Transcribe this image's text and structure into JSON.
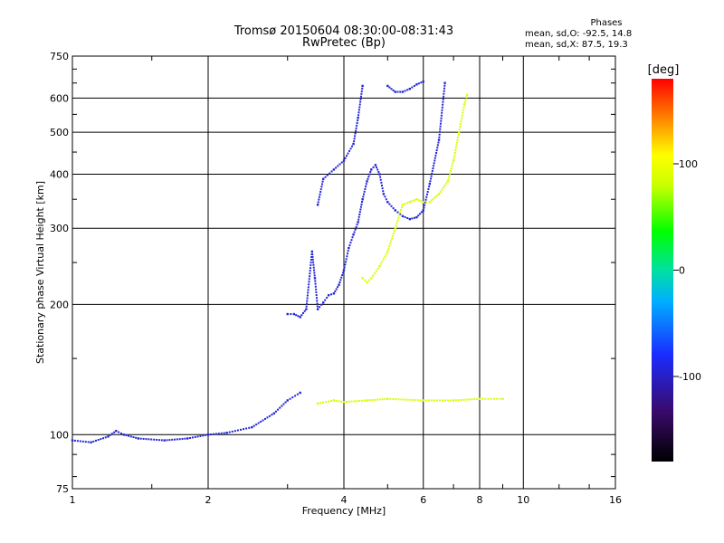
{
  "chart_data": {
    "type": "scatter",
    "title": "Tromsø 20150604 08:30:00-08:31:43",
    "subtitle": "RwPretec (Bp)",
    "xlabel": "Frequency [MHz]",
    "ylabel": "Stationary phase Virtual Height [km]",
    "x_scale": "log",
    "y_scale": "log",
    "xlim": [
      1,
      16
    ],
    "ylim": [
      75,
      750
    ],
    "x_ticks": [
      1,
      2,
      4,
      6,
      8,
      10,
      16
    ],
    "y_ticks": [
      75,
      100,
      200,
      300,
      400,
      500,
      600,
      750
    ],
    "grid": true,
    "phases": {
      "title": "Phases",
      "o_mode": "mean, sd,O: -92.5, 14.8",
      "x_mode": "mean, sd,X:  87.5, 19.3"
    },
    "colorbar": {
      "label": "[deg]",
      "ticks": [
        100,
        0,
        -100
      ],
      "range": [
        -180,
        180
      ]
    },
    "series": [
      {
        "mode": "O",
        "color_value": -92.5,
        "segments": [
          [
            [
              1.0,
              97
            ],
            [
              1.1,
              96
            ],
            [
              1.2,
              99
            ],
            [
              1.25,
              102
            ],
            [
              1.3,
              100
            ],
            [
              1.4,
              98
            ],
            [
              1.6,
              97
            ],
            [
              1.8,
              98
            ],
            [
              2.0,
              100
            ],
            [
              2.2,
              101
            ],
            [
              2.5,
              104
            ],
            [
              2.8,
              112
            ],
            [
              3.0,
              120
            ],
            [
              3.2,
              125
            ]
          ],
          [
            [
              3.0,
              190
            ],
            [
              3.1,
              190
            ],
            [
              3.2,
              187
            ],
            [
              3.3,
              195
            ],
            [
              3.4,
              265
            ],
            [
              3.45,
              230
            ],
            [
              3.5,
              195
            ],
            [
              3.6,
              202
            ],
            [
              3.7,
              210
            ],
            [
              3.8,
              212
            ],
            [
              3.9,
              222
            ],
            [
              4.0,
              240
            ],
            [
              4.1,
              270
            ],
            [
              4.2,
              290
            ],
            [
              4.3,
              310
            ],
            [
              4.4,
              350
            ],
            [
              4.5,
              385
            ],
            [
              4.6,
              410
            ],
            [
              4.7,
              420
            ],
            [
              4.8,
              400
            ],
            [
              4.9,
              360
            ],
            [
              5.0,
              345
            ],
            [
              5.2,
              330
            ],
            [
              5.4,
              320
            ],
            [
              5.6,
              315
            ],
            [
              5.8,
              318
            ],
            [
              6.0,
              330
            ],
            [
              6.2,
              380
            ],
            [
              6.5,
              480
            ],
            [
              6.7,
              650
            ]
          ],
          [
            [
              3.5,
              340
            ],
            [
              3.6,
              390
            ],
            [
              3.8,
              410
            ],
            [
              4.0,
              430
            ],
            [
              4.2,
              470
            ],
            [
              4.3,
              540
            ],
            [
              4.4,
              640
            ]
          ],
          [
            [
              5.0,
              640
            ],
            [
              5.2,
              620
            ],
            [
              5.4,
              620
            ],
            [
              5.6,
              630
            ],
            [
              5.8,
              645
            ],
            [
              6.0,
              655
            ]
          ]
        ]
      },
      {
        "mode": "X",
        "color_value": 87.5,
        "segments": [
          [
            [
              4.4,
              230
            ],
            [
              4.5,
              225
            ],
            [
              4.6,
              230
            ],
            [
              4.8,
              245
            ],
            [
              5.0,
              265
            ],
            [
              5.2,
              300
            ],
            [
              5.4,
              340
            ],
            [
              5.6,
              345
            ],
            [
              5.8,
              350
            ],
            [
              6.0,
              345
            ],
            [
              6.2,
              345
            ],
            [
              6.5,
              360
            ],
            [
              6.8,
              385
            ],
            [
              7.0,
              430
            ],
            [
              7.2,
              500
            ],
            [
              7.4,
              580
            ],
            [
              7.5,
              610
            ]
          ],
          [
            [
              3.5,
              118
            ],
            [
              3.8,
              120
            ],
            [
              4.0,
              119
            ],
            [
              4.5,
              120
            ],
            [
              5.0,
              121
            ],
            [
              6.0,
              120
            ],
            [
              7.0,
              120
            ],
            [
              8.0,
              121
            ],
            [
              9.0,
              121
            ]
          ]
        ]
      }
    ]
  }
}
